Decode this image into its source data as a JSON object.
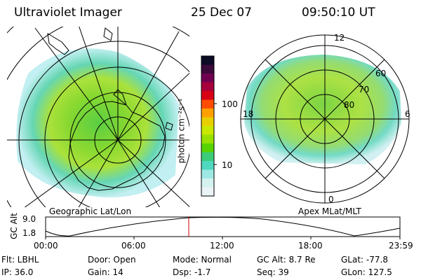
{
  "header": {
    "title": "Ultraviolet Imager",
    "date": "25 Dec 07",
    "time": "09:50:10 UT"
  },
  "left_map": {
    "label": "Geographic Lat/Lon"
  },
  "right_map": {
    "label": "Apex MLat/MLT",
    "mlt_labels": [
      "12",
      "18",
      "6",
      "0"
    ],
    "mlat_labels": [
      "60",
      "70",
      "80"
    ]
  },
  "colorbar": {
    "unit": "photon cm⁻²s⁻¹",
    "ticks": [
      "100",
      "10"
    ],
    "colors": [
      "#0b0b25",
      "#3a0a3a",
      "#70004f",
      "#a8003a",
      "#d90016",
      "#ff4c00",
      "#ffa000",
      "#e8d000",
      "#c8e800",
      "#9ae000",
      "#58d400",
      "#3ccc7a",
      "#4fd8c0",
      "#9ee8e4",
      "#d4f2f0",
      "#eaf4f6"
    ]
  },
  "altitude_plot": {
    "ylabel": "GC Alt",
    "yticks": [
      "9.0",
      "1.8"
    ],
    "xticks": [
      "00:00",
      "06:00",
      "12:00",
      "18:00",
      "23:59"
    ]
  },
  "status": {
    "flt": "Flt: LBHL",
    "ip": "IP: 36.0",
    "door": "Door: Open",
    "gain": "Gain: 14",
    "mode": "Mode: Normal",
    "dsp": "Dsp:   -1.7",
    "gcalt": "GC Alt: 8.7 Re",
    "seq": "Seq: 39",
    "glat": "GLat: -77.8",
    "glon": "GLon: 127.5"
  }
}
